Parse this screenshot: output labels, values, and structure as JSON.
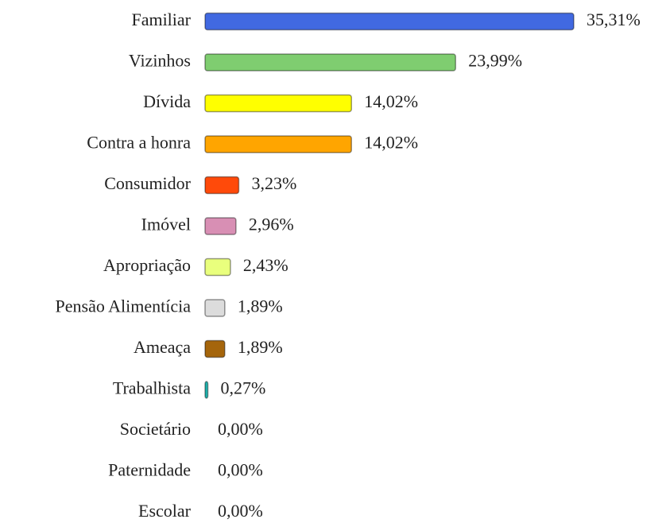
{
  "chart_data": {
    "type": "bar",
    "orientation": "horizontal",
    "categories": [
      "Familiar",
      "Vizinhos",
      "Dívida",
      "Contra a honra",
      "Consumidor",
      "Imóvel",
      "Apropriação",
      "Pensão Alimentícia",
      "Ameaça",
      "Trabalhista",
      "Societário",
      "Paternidade",
      "Escolar"
    ],
    "values": [
      35.31,
      23.99,
      14.02,
      14.02,
      3.23,
      2.96,
      2.43,
      1.89,
      1.89,
      0.27,
      0,
      0,
      0
    ],
    "value_labels": [
      "35,31%",
      "23,99%",
      "14,02%",
      "14,02%",
      "3,23%",
      "2,96%",
      "2,43%",
      "1,89%",
      "1,89%",
      "0,27%",
      "0,00%",
      "0,00%",
      "0,00%"
    ],
    "colors": [
      "#4169e1",
      "#7fcd70",
      "#ffff00",
      "#ffa500",
      "#ff4a0a",
      "#d88fb4",
      "#e9ff7d",
      "#dcdcdc",
      "#a5650b",
      "#1fb5b0",
      null,
      null,
      null
    ]
  }
}
